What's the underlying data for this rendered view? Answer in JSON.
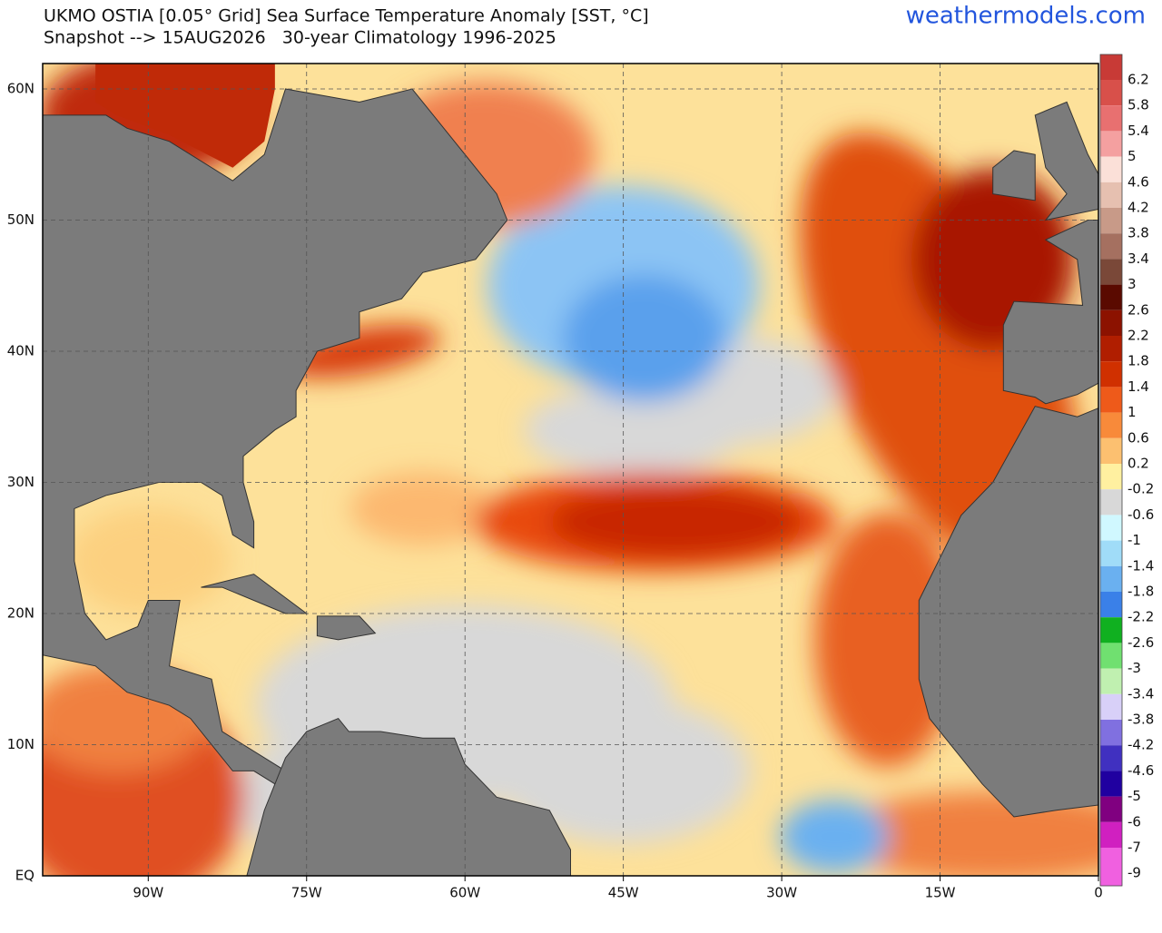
{
  "header": {
    "title": "UKMO OSTIA [0.05° Grid] Sea Surface Temperature Anomaly [SST, °C]",
    "subtitle": "Snapshot --> 15AUG2026   30-year Climatology 1996-2025",
    "site": "weathermodels.com"
  },
  "map": {
    "lat_labels": [
      "60N",
      "50N",
      "40N",
      "30N",
      "20N",
      "10N",
      "EQ"
    ],
    "lon_labels": [
      "90W",
      "75W",
      "60W",
      "45W",
      "30W",
      "15W",
      "0"
    ]
  },
  "colorbar": {
    "labels": [
      "6.2",
      "5.8",
      "5.4",
      "5",
      "4.6",
      "4.2",
      "3.8",
      "3.4",
      "3",
      "2.6",
      "2.2",
      "1.8",
      "1.4",
      "1",
      "0.6",
      "0.2",
      "-0.2",
      "-0.6",
      "-1",
      "-1.4",
      "-1.8",
      "-2.2",
      "-2.6",
      "-3",
      "-3.4",
      "-3.8",
      "-4.2",
      "-4.6",
      "-5",
      "-6",
      "-7",
      "-9"
    ],
    "colors": [
      "#c83a36",
      "#d8504a",
      "#e87070",
      "#f4a0a0",
      "#fbe0d8",
      "#e6c0b0",
      "#c89a88",
      "#a57060",
      "#7a4838",
      "#5a0a00",
      "#8c1200",
      "#b01e00",
      "#d03000",
      "#ee5a1a",
      "#f88a3a",
      "#fcc070",
      "#fff0a0",
      "#d8d8d8",
      "#d0f8ff",
      "#a0dcf8",
      "#6ab0f0",
      "#3a80e8",
      "#10b020",
      "#70e070",
      "#c0f0b0",
      "#d8d0f8",
      "#8070e0",
      "#4030c0",
      "#2000a0",
      "#800080",
      "#d020c0",
      "#f060e0"
    ]
  }
}
